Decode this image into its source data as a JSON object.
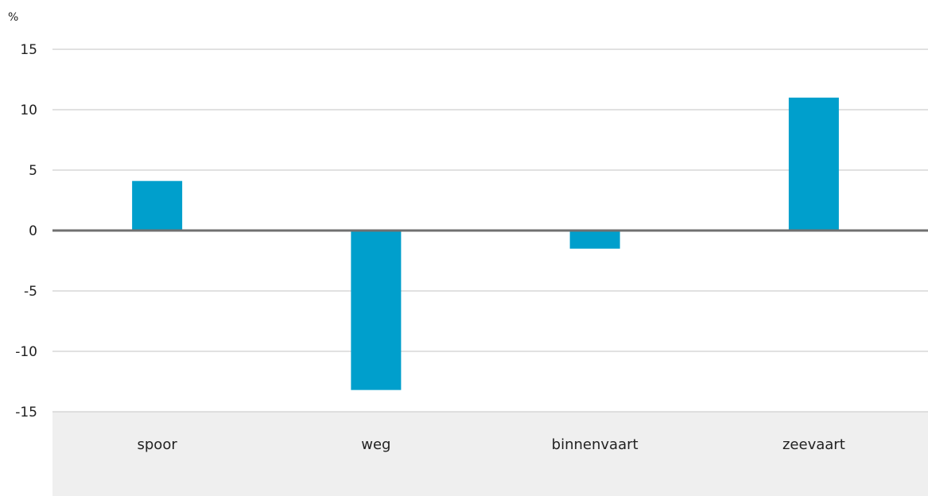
{
  "chart_data": {
    "type": "bar",
    "ylabel": "%",
    "ylim": [
      -15,
      15
    ],
    "yticks": [
      15,
      10,
      5,
      0,
      -5,
      -10,
      -15
    ],
    "grid": true,
    "categories": [
      "spoor",
      "weg",
      "binnenvaart",
      "zeevaart"
    ],
    "values": [
      4.1,
      -13.2,
      -1.5,
      11.0
    ],
    "colors": {
      "bar": "#009fcc",
      "grid": "#cfcfcf",
      "zero_line": "#707070",
      "category_band": "#efefef"
    }
  }
}
